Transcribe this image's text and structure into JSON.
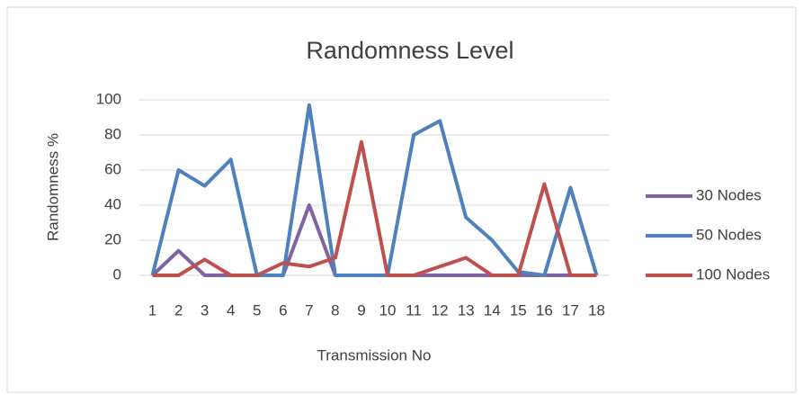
{
  "chart_data": {
    "type": "line",
    "title": "Randomness Level",
    "x_label": "Transmission No",
    "y_label": "Randomness %",
    "categories": [
      "1",
      "2",
      "3",
      "4",
      "5",
      "6",
      "7",
      "8",
      "9",
      "10",
      "11",
      "12",
      "13",
      "14",
      "15",
      "16",
      "17",
      "18"
    ],
    "series": [
      {
        "name": "30 Nodes",
        "color": "#8064a2",
        "values": [
          0,
          14,
          0,
          0,
          0,
          0,
          40,
          0,
          0,
          0,
          0,
          0,
          0,
          0,
          0,
          0,
          0,
          0
        ]
      },
      {
        "name": "50 Nodes",
        "color": "#4f81bd",
        "values": [
          0,
          60,
          51,
          66,
          0,
          0,
          97,
          0,
          0,
          0,
          80,
          88,
          33,
          20,
          2,
          0,
          50,
          0
        ]
      },
      {
        "name": "100 Nodes",
        "color": "#c0504d",
        "values": [
          0,
          0,
          9,
          0,
          0,
          7,
          5,
          10,
          76,
          0,
          0,
          5,
          10,
          0,
          0,
          52,
          0,
          0
        ]
      }
    ],
    "ylim": [
      0,
      100
    ],
    "yticks": [
      0,
      20,
      40,
      60,
      80,
      100
    ],
    "grid": true,
    "legend": "right"
  }
}
